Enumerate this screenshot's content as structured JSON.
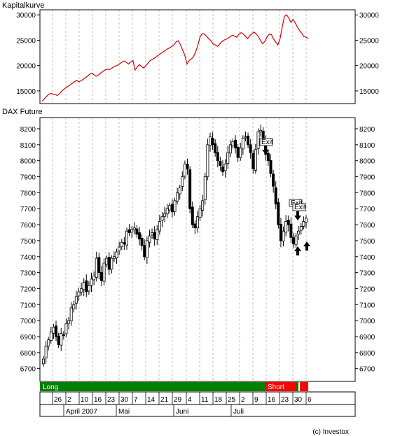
{
  "chart_data": [
    {
      "type": "line",
      "title": "Kapitalkurve",
      "ylim": [
        12500,
        31000
      ],
      "yticks": [
        15000,
        20000,
        25000,
        30000
      ],
      "ytick_labels_right": [
        "15000",
        "20000",
        "25000",
        "30000"
      ],
      "ytick_labels_left": [
        "15000",
        "20000",
        "25000",
        "30000"
      ],
      "grid": "vertical-dashed",
      "color": "#d40000",
      "y": [
        13000,
        13400,
        13900,
        14300,
        14500,
        14400,
        14300,
        14100,
        14400,
        14900,
        15300,
        15600,
        15900,
        16200,
        16500,
        16800,
        17100,
        16800,
        17000,
        17300,
        17600,
        17900,
        18300,
        18500,
        18200,
        17900,
        18100,
        18500,
        18800,
        19100,
        19300,
        19200,
        19400,
        19700,
        19900,
        20100,
        20400,
        20700,
        20900,
        20600,
        20300,
        20700,
        21000,
        19100,
        19700,
        20200,
        19800,
        19500,
        20000,
        20500,
        21000,
        21200,
        21500,
        21800,
        22100,
        22400,
        22700,
        23000,
        23300,
        23500,
        23800,
        24100,
        24700,
        24900,
        24100,
        23000,
        22000,
        20300,
        21000,
        21300,
        21800,
        22700,
        24000,
        25600,
        26300,
        26200,
        25800,
        25300,
        24900,
        24300,
        24100,
        23800,
        24200,
        24700,
        25000,
        25200,
        25400,
        25700,
        26000,
        25800,
        25600,
        26200,
        26500,
        26200,
        25800,
        25300,
        25900,
        26300,
        26600,
        26200,
        25700,
        24900,
        24300,
        24800,
        25700,
        26200,
        26100,
        25200,
        24600,
        24100,
        25300,
        27600,
        29700,
        30000,
        29400,
        28500,
        29100,
        28400,
        27600,
        26900,
        26400,
        25700,
        25600,
        25300
      ]
    },
    {
      "type": "candlestick",
      "title": "DAX Future",
      "ylim": [
        6620,
        8270
      ],
      "yticks": [
        6700,
        6800,
        6900,
        7000,
        7100,
        7200,
        7300,
        7400,
        7500,
        7600,
        7700,
        7800,
        7900,
        8000,
        8100,
        8200
      ],
      "ytick_labels": [
        "6700",
        "6800",
        "6900",
        "7000",
        "7100",
        "7200",
        "7300",
        "7400",
        "7500",
        "7600",
        "7700",
        "7800",
        "7900",
        "8000",
        "8100",
        "8200"
      ],
      "grid": "vertical-dashed",
      "close": [
        6760,
        6840,
        6880,
        6930,
        6960,
        6900,
        6850,
        6920,
        6910,
        6980,
        7000,
        7080,
        7100,
        7150,
        7180,
        7200,
        7240,
        7180,
        7220,
        7260,
        7280,
        7390,
        7300,
        7250,
        7360,
        7390,
        7320,
        7390,
        7400,
        7430,
        7460,
        7490,
        7480,
        7560,
        7550,
        7570,
        7580,
        7540,
        7510,
        7470,
        7400,
        7500,
        7530,
        7550,
        7510,
        7570,
        7620,
        7650,
        7670,
        7700,
        7720,
        7680,
        7750,
        7800,
        7830,
        7900,
        7980,
        7950,
        7700,
        7600,
        7580,
        7650,
        7700,
        7750,
        7900,
        8100,
        8150,
        8100,
        8050,
        8000,
        7970,
        7930,
        7980,
        8050,
        8100,
        8120,
        8080,
        8020,
        8080,
        8140,
        8150,
        8100,
        8050,
        7950,
        8070,
        8180,
        8190,
        8130,
        8040,
        8000,
        7920,
        7840,
        7730,
        7600,
        7500,
        7560,
        7620,
        7600,
        7520,
        7480,
        7530,
        7560,
        7590,
        7620,
        7640
      ]
    }
  ],
  "labels": {
    "kapital_title": "Kapitalkurve",
    "dax_title": "DAX Future",
    "credit": "(c) Investox"
  },
  "signals": {
    "long_label": "Long",
    "short_label": "Short",
    "exit_labels": [
      "Exit",
      "Exit",
      "Exit"
    ]
  },
  "xaxis": {
    "day_labels": [
      "26",
      "2",
      "10",
      "16",
      "23",
      "30",
      "7",
      "14",
      "21",
      "29",
      "4",
      "11",
      "18",
      "25",
      "2",
      "9",
      "16",
      "23",
      "30",
      "6"
    ],
    "month_labels": [
      "April 2007",
      "Mai",
      "Juni",
      "Juli"
    ]
  },
  "colors": {
    "equity_line": "#d40000",
    "long_band": "#008000",
    "short_band": "#ff0000",
    "candle": "#000000",
    "grid": "#999999"
  }
}
